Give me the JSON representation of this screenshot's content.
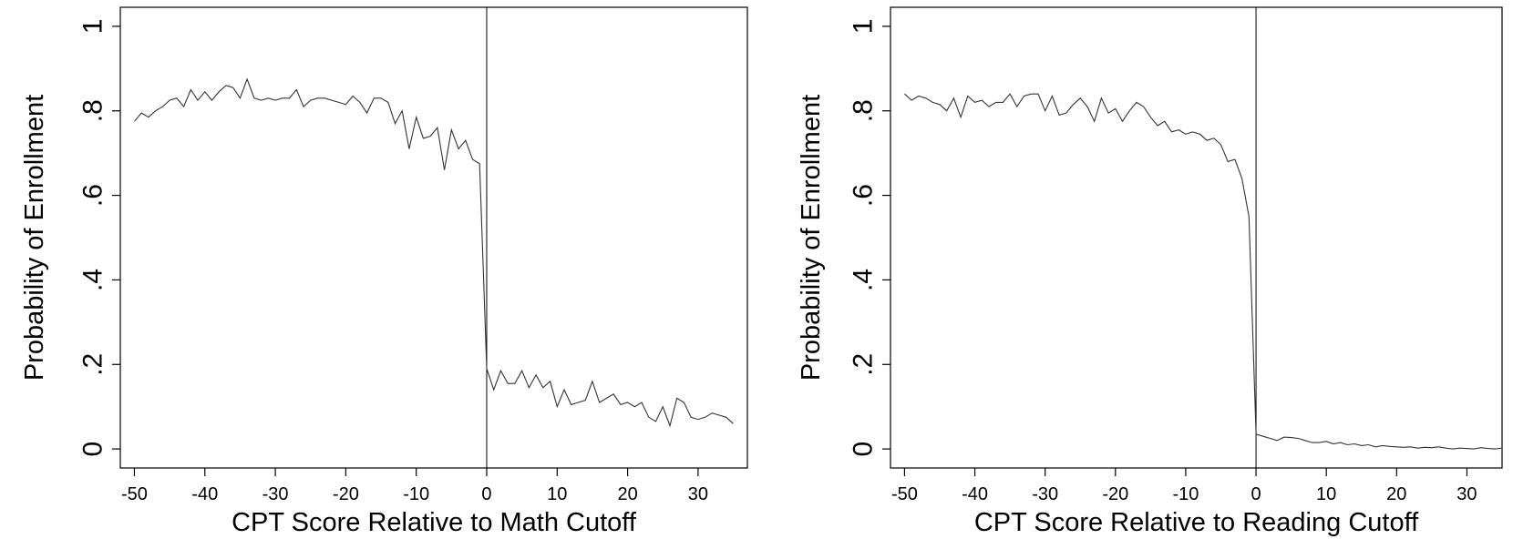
{
  "chart_data": [
    {
      "type": "line",
      "title": "",
      "xlabel": "CPT Score Relative to Math Cutoff",
      "ylabel": "Probability of Enrollment",
      "xlim": [
        -52,
        37
      ],
      "ylim": [
        -0.045,
        1.045
      ],
      "xticks": [
        -50,
        -40,
        -30,
        -20,
        -10,
        0,
        10,
        20,
        30
      ],
      "xtick_labels": [
        "-50",
        "-40",
        "-30",
        "-20",
        "-10",
        "0",
        "10",
        "20",
        "30"
      ],
      "yticks": [
        0,
        0.2,
        0.4,
        0.6,
        0.8,
        1
      ],
      "ytick_labels": [
        "0",
        ".2",
        ".4",
        ".6",
        ".8",
        "1"
      ],
      "cutoff": 0,
      "grid": false,
      "series": [
        {
          "x": [
            -50,
            -49,
            -48,
            -47,
            -46,
            -45,
            -44,
            -43,
            -42,
            -41,
            -40,
            -39,
            -38,
            -37,
            -36,
            -35,
            -34,
            -33,
            -32,
            -31,
            -30,
            -29,
            -28,
            -27,
            -26,
            -25,
            -24,
            -23,
            -22,
            -21,
            -20,
            -19,
            -18,
            -17,
            -16,
            -15,
            -14,
            -13,
            -12,
            -11,
            -10,
            -9,
            -8,
            -7,
            -6,
            -5,
            -4,
            -3,
            -2,
            -1,
            0,
            1,
            2,
            3,
            4,
            5,
            6,
            7,
            8,
            9,
            10,
            11,
            12,
            13,
            14,
            15,
            16,
            17,
            18,
            19,
            20,
            21,
            22,
            23,
            24,
            25,
            26,
            27,
            28,
            29,
            30,
            31,
            32,
            33,
            34,
            35
          ],
          "y": [
            0.775,
            0.795,
            0.785,
            0.8,
            0.81,
            0.825,
            0.83,
            0.81,
            0.85,
            0.825,
            0.845,
            0.825,
            0.845,
            0.86,
            0.855,
            0.83,
            0.875,
            0.83,
            0.825,
            0.83,
            0.825,
            0.83,
            0.83,
            0.85,
            0.81,
            0.825,
            0.83,
            0.83,
            0.825,
            0.82,
            0.815,
            0.835,
            0.82,
            0.795,
            0.83,
            0.83,
            0.82,
            0.77,
            0.8,
            0.71,
            0.785,
            0.735,
            0.74,
            0.76,
            0.66,
            0.755,
            0.71,
            0.73,
            0.685,
            0.675,
            0.19,
            0.14,
            0.185,
            0.155,
            0.155,
            0.185,
            0.145,
            0.175,
            0.145,
            0.16,
            0.1,
            0.14,
            0.105,
            0.11,
            0.115,
            0.16,
            0.11,
            0.12,
            0.13,
            0.105,
            0.11,
            0.1,
            0.11,
            0.075,
            0.065,
            0.1,
            0.055,
            0.12,
            0.11,
            0.075,
            0.07,
            0.075,
            0.085,
            0.08,
            0.075,
            0.06
          ]
        }
      ]
    },
    {
      "type": "line",
      "title": "",
      "xlabel": "CPT Score Relative to Reading Cutoff",
      "ylabel": "Probability of Enrollment",
      "xlim": [
        -52,
        35
      ],
      "ylim": [
        -0.045,
        1.045
      ],
      "xticks": [
        -50,
        -40,
        -30,
        -20,
        -10,
        0,
        10,
        20,
        30
      ],
      "xtick_labels": [
        "-50",
        "-40",
        "-30",
        "-20",
        "-10",
        "0",
        "10",
        "20",
        "30"
      ],
      "yticks": [
        0,
        0.2,
        0.4,
        0.6,
        0.8,
        1
      ],
      "ytick_labels": [
        "0",
        ".2",
        ".4",
        ".6",
        ".8",
        "1"
      ],
      "cutoff": 0,
      "grid": false,
      "series": [
        {
          "x": [
            -50,
            -49,
            -48,
            -47,
            -46,
            -45,
            -44,
            -43,
            -42,
            -41,
            -40,
            -39,
            -38,
            -37,
            -36,
            -35,
            -34,
            -33,
            -32,
            -31,
            -30,
            -29,
            -28,
            -27,
            -26,
            -25,
            -24,
            -23,
            -22,
            -21,
            -20,
            -19,
            -18,
            -17,
            -16,
            -15,
            -14,
            -13,
            -12,
            -11,
            -10,
            -9,
            -8,
            -7,
            -6,
            -5,
            -4,
            -3,
            -2,
            -1,
            0,
            1,
            2,
            3,
            4,
            5,
            6,
            7,
            8,
            9,
            10,
            11,
            12,
            13,
            14,
            15,
            16,
            17,
            18,
            19,
            20,
            21,
            22,
            23,
            24,
            25,
            26,
            27,
            28,
            29,
            30,
            31,
            32,
            33,
            34,
            35
          ],
          "y": [
            0.84,
            0.825,
            0.835,
            0.83,
            0.82,
            0.815,
            0.8,
            0.83,
            0.785,
            0.835,
            0.82,
            0.825,
            0.81,
            0.82,
            0.82,
            0.84,
            0.81,
            0.835,
            0.84,
            0.84,
            0.8,
            0.835,
            0.79,
            0.795,
            0.815,
            0.83,
            0.81,
            0.775,
            0.83,
            0.795,
            0.805,
            0.775,
            0.8,
            0.82,
            0.81,
            0.785,
            0.765,
            0.775,
            0.75,
            0.755,
            0.745,
            0.75,
            0.745,
            0.73,
            0.735,
            0.72,
            0.68,
            0.685,
            0.64,
            0.55,
            0.035,
            0.03,
            0.025,
            0.02,
            0.028,
            0.027,
            0.025,
            0.02,
            0.015,
            0.015,
            0.018,
            0.012,
            0.015,
            0.01,
            0.012,
            0.008,
            0.01,
            0.005,
            0.008,
            0.006,
            0.005,
            0.004,
            0.005,
            0.002,
            0.004,
            0.003,
            0.005,
            0.002,
            0.0,
            0.002,
            0.001,
            0.0,
            0.003,
            0.001,
            0.0,
            0.002
          ]
        }
      ]
    }
  ]
}
